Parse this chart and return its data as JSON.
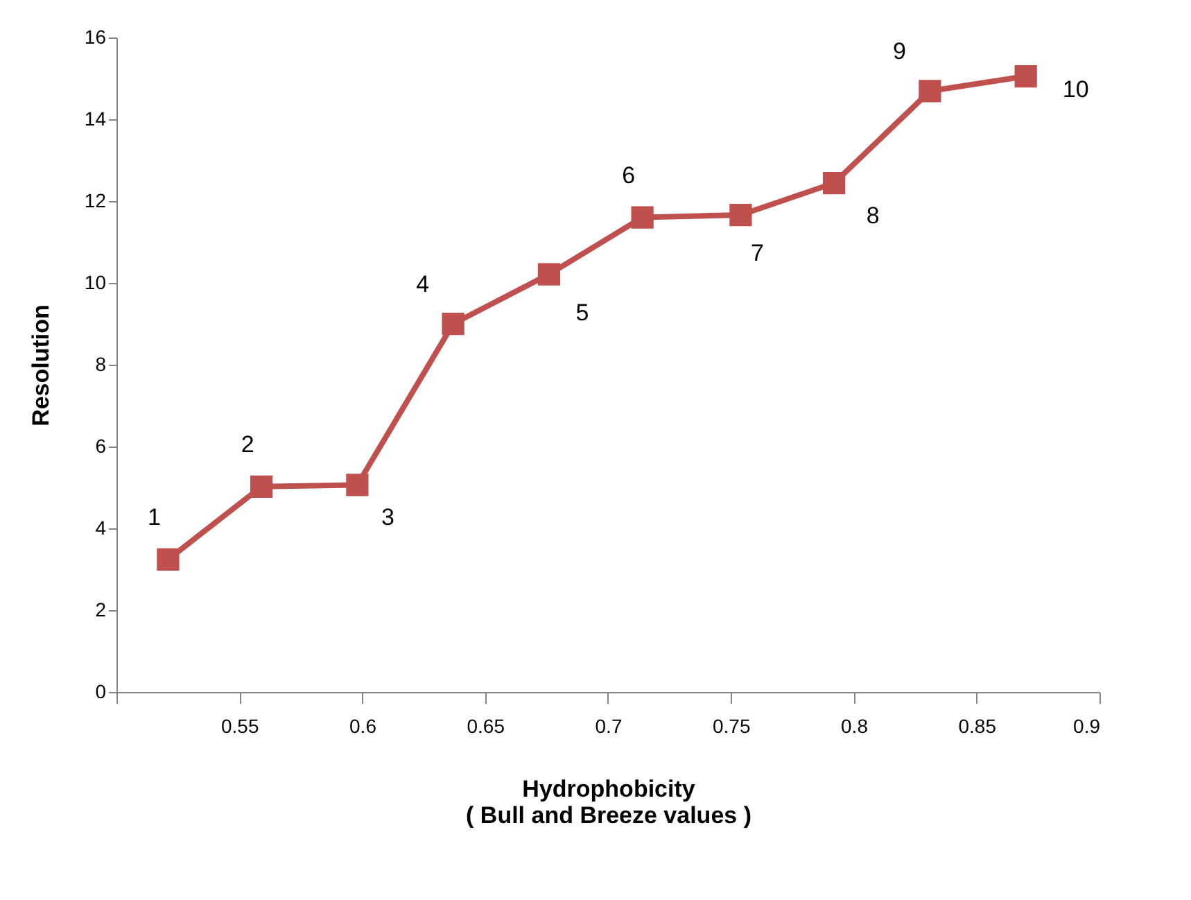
{
  "chart_data": {
    "type": "line",
    "xlabel": "Hydrophobicity\n( Bull and Breeze values )",
    "ylabel": "Resolution",
    "x": [
      0.521,
      0.559,
      0.598,
      0.637,
      0.676,
      0.714,
      0.754,
      0.792,
      0.831,
      0.87
    ],
    "series": [
      {
        "color": "#c0504d",
        "values": [
          3.24,
          5.02,
          5.06,
          9.0,
          10.21,
          11.6,
          11.66,
          12.44,
          14.69,
          15.05
        ]
      }
    ],
    "xlim": [
      0.5,
      0.9
    ],
    "xticks": [
      {
        "value": 0.5,
        "label": null
      },
      0.55,
      0.6,
      0.65,
      0.7,
      0.75,
      0.8,
      0.85,
      0.9
    ],
    "ylim": [
      0,
      16
    ],
    "yticks": [
      0,
      2,
      4,
      6,
      8,
      10,
      12,
      14,
      16
    ],
    "marker": "square",
    "line_style": "solid",
    "annotations": [
      {
        "text": "1",
        "x": 0.521,
        "y": 3.24
      },
      {
        "text": "2",
        "x": 0.559,
        "y": 5.02
      },
      {
        "text": "3",
        "x": 0.598,
        "y": 5.06
      },
      {
        "text": "4",
        "x": 0.637,
        "y": 9.0
      },
      {
        "text": "5",
        "x": 0.676,
        "y": 10.21
      },
      {
        "text": "6",
        "x": 0.714,
        "y": 11.6
      },
      {
        "text": "7",
        "x": 0.754,
        "y": 11.66
      },
      {
        "text": "8",
        "x": 0.792,
        "y": 12.44
      },
      {
        "text": "9",
        "x": 0.831,
        "y": 14.69
      },
      {
        "text": "10",
        "x": 0.87,
        "y": 15.05
      }
    ]
  }
}
